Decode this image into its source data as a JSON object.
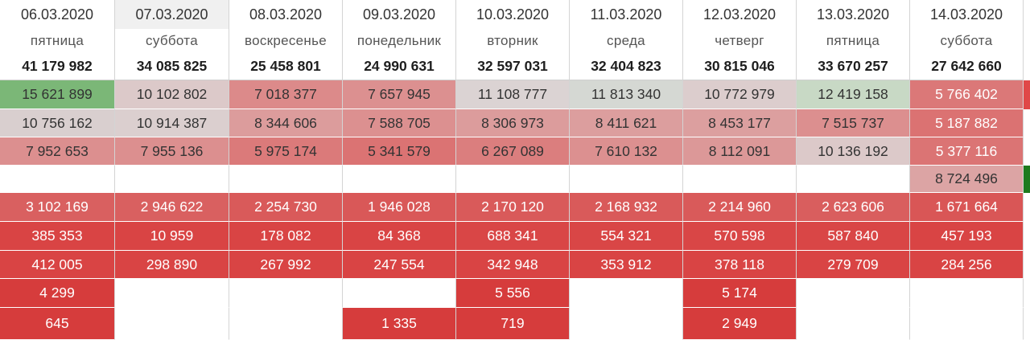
{
  "columns": [
    {
      "date": "06.03.2020",
      "day": "пятница",
      "total": "41 179 982",
      "cells": [
        {
          "v": "15 621 899",
          "bg": "#7bb777",
          "t": "light"
        },
        {
          "v": "10 756 162",
          "bg": "#d9cfcf",
          "t": "light"
        },
        {
          "v": "7 952 653",
          "bg": "#dc8f8f",
          "t": "light"
        },
        {
          "v": "",
          "bg": "#ffffff",
          "t": "light"
        },
        {
          "v": "3 102 169",
          "bg": "#d96060",
          "t": "med"
        },
        {
          "v": "385 353",
          "bg": "#d94444",
          "t": "dark"
        },
        {
          "v": "412 005",
          "bg": "#d94444",
          "t": "dark"
        },
        {
          "v": "4 299",
          "bg": "#d63c3c",
          "t": "dark"
        },
        {
          "v": "645",
          "bg": "#d63c3c",
          "t": "dark"
        }
      ]
    },
    {
      "date": "07.03.2020",
      "day": "суббота",
      "total": "34 085 825",
      "cells": [
        {
          "v": "10 102 802",
          "bg": "#dcc9c9",
          "t": "light"
        },
        {
          "v": "10 914 387",
          "bg": "#dbcfcf",
          "t": "light"
        },
        {
          "v": "7 955 136",
          "bg": "#dc8f8f",
          "t": "light"
        },
        {
          "v": "",
          "bg": "#ffffff",
          "t": "light"
        },
        {
          "v": "2 946 622",
          "bg": "#d96060",
          "t": "med"
        },
        {
          "v": "10 959",
          "bg": "#d94444",
          "t": "dark"
        },
        {
          "v": "298 890",
          "bg": "#d94444",
          "t": "dark"
        },
        {
          "v": "",
          "bg": "#ffffff",
          "t": "light"
        },
        {
          "v": "",
          "bg": "#ffffff",
          "t": "light"
        }
      ]
    },
    {
      "date": "08.03.2020",
      "day": "воскресенье",
      "total": "25 458 801",
      "cells": [
        {
          "v": "7 018 377",
          "bg": "#dc8a8a",
          "t": "light"
        },
        {
          "v": "8 344 606",
          "bg": "#dc9c9c",
          "t": "light"
        },
        {
          "v": "5 975 174",
          "bg": "#db7a7a",
          "t": "light"
        },
        {
          "v": "",
          "bg": "#ffffff",
          "t": "light"
        },
        {
          "v": "2 254 730",
          "bg": "#d95a5a",
          "t": "med"
        },
        {
          "v": "178 082",
          "bg": "#d94444",
          "t": "dark"
        },
        {
          "v": "267 992",
          "bg": "#d94444",
          "t": "dark"
        },
        {
          "v": "",
          "bg": "#ffffff",
          "t": "light"
        },
        {
          "v": "",
          "bg": "#ffffff",
          "t": "light"
        }
      ]
    },
    {
      "date": "09.03.2020",
      "day": "понедельник",
      "total": "24 990 631",
      "cells": [
        {
          "v": "7 657 945",
          "bg": "#dc9090",
          "t": "light"
        },
        {
          "v": "7 588 705",
          "bg": "#dc9090",
          "t": "light"
        },
        {
          "v": "5 341 579",
          "bg": "#db7373",
          "t": "light"
        },
        {
          "v": "",
          "bg": "#ffffff",
          "t": "light"
        },
        {
          "v": "1 946 028",
          "bg": "#d95858",
          "t": "med"
        },
        {
          "v": "84 368",
          "bg": "#d94444",
          "t": "dark"
        },
        {
          "v": "247 554",
          "bg": "#d94444",
          "t": "dark"
        },
        {
          "v": "",
          "bg": "#ffffff",
          "t": "light"
        },
        {
          "v": "1 335",
          "bg": "#d63c3c",
          "t": "dark"
        }
      ]
    },
    {
      "date": "10.03.2020",
      "day": "вторник",
      "total": "32 597 031",
      "cells": [
        {
          "v": "11 108 777",
          "bg": "#dbd3d3",
          "t": "light"
        },
        {
          "v": "8 306 973",
          "bg": "#dc9c9c",
          "t": "light"
        },
        {
          "v": "6 267 089",
          "bg": "#db7e7e",
          "t": "light"
        },
        {
          "v": "",
          "bg": "#ffffff",
          "t": "light"
        },
        {
          "v": "2 170 120",
          "bg": "#d95a5a",
          "t": "med"
        },
        {
          "v": "688 341",
          "bg": "#d94646",
          "t": "dark"
        },
        {
          "v": "342 948",
          "bg": "#d94444",
          "t": "dark"
        },
        {
          "v": "5 556",
          "bg": "#d63c3c",
          "t": "dark"
        },
        {
          "v": "719",
          "bg": "#d63c3c",
          "t": "dark"
        }
      ]
    },
    {
      "date": "11.03.2020",
      "day": "среда",
      "total": "32 404 823",
      "cells": [
        {
          "v": "11 813 340",
          "bg": "#d5d8d3",
          "t": "light"
        },
        {
          "v": "8 411 621",
          "bg": "#dc9e9e",
          "t": "light"
        },
        {
          "v": "7 610 132",
          "bg": "#dc9090",
          "t": "light"
        },
        {
          "v": "",
          "bg": "#ffffff",
          "t": "light"
        },
        {
          "v": "2 168 932",
          "bg": "#d95a5a",
          "t": "med"
        },
        {
          "v": "554 321",
          "bg": "#d94646",
          "t": "dark"
        },
        {
          "v": "353 912",
          "bg": "#d94444",
          "t": "dark"
        },
        {
          "v": "",
          "bg": "#ffffff",
          "t": "light"
        },
        {
          "v": "",
          "bg": "#ffffff",
          "t": "light"
        }
      ]
    },
    {
      "date": "12.03.2020",
      "day": "четверг",
      "total": "30 815 046",
      "cells": [
        {
          "v": "10 772 979",
          "bg": "#dccdcd",
          "t": "light"
        },
        {
          "v": "8 453 177",
          "bg": "#dc9f9f",
          "t": "light"
        },
        {
          "v": "8 112 091",
          "bg": "#dc9898",
          "t": "light"
        },
        {
          "v": "",
          "bg": "#ffffff",
          "t": "light"
        },
        {
          "v": "2 214 960",
          "bg": "#d95a5a",
          "t": "med"
        },
        {
          "v": "570 598",
          "bg": "#d94646",
          "t": "dark"
        },
        {
          "v": "378 118",
          "bg": "#d94444",
          "t": "dark"
        },
        {
          "v": "5 174",
          "bg": "#d63c3c",
          "t": "dark"
        },
        {
          "v": "2 949",
          "bg": "#d63c3c",
          "t": "dark"
        }
      ]
    },
    {
      "date": "13.03.2020",
      "day": "пятница",
      "total": "33 670 257",
      "cells": [
        {
          "v": "12 419 158",
          "bg": "#c8d9c5",
          "t": "light"
        },
        {
          "v": "7 515 737",
          "bg": "#dc8f8f",
          "t": "light"
        },
        {
          "v": "10 136 192",
          "bg": "#dcc9c9",
          "t": "light"
        },
        {
          "v": "",
          "bg": "#ffffff",
          "t": "light"
        },
        {
          "v": "2 623 606",
          "bg": "#d95e5e",
          "t": "med"
        },
        {
          "v": "587 840",
          "bg": "#d94646",
          "t": "dark"
        },
        {
          "v": "279 709",
          "bg": "#d94444",
          "t": "dark"
        },
        {
          "v": "",
          "bg": "#ffffff",
          "t": "light"
        },
        {
          "v": "",
          "bg": "#ffffff",
          "t": "light"
        }
      ]
    },
    {
      "date": "14.03.2020",
      "day": "суббота",
      "total": "27 642 660",
      "cells": [
        {
          "v": "5 766 402",
          "bg": "#db7878",
          "t": "med"
        },
        {
          "v": "5 187 882",
          "bg": "#db7272",
          "t": "med"
        },
        {
          "v": "5 377 116",
          "bg": "#db7474",
          "t": "med"
        },
        {
          "v": "8 724 496",
          "bg": "#dca4a4",
          "t": "light"
        },
        {
          "v": "1 671 664",
          "bg": "#d95656",
          "t": "med"
        },
        {
          "v": "457 193",
          "bg": "#d94444",
          "t": "dark"
        },
        {
          "v": "284 256",
          "bg": "#d94444",
          "t": "dark"
        },
        {
          "v": "",
          "bg": "#ffffff",
          "t": "light"
        },
        {
          "v": "",
          "bg": "#ffffff",
          "t": "light"
        }
      ]
    }
  ],
  "edge_flags": [
    "red",
    "",
    "",
    "green",
    "",
    "",
    "",
    "",
    ""
  ],
  "colors": {
    "highest": "#7bb777",
    "neutral": "#dbd3d3",
    "low": "#d94444",
    "grid_line": "#d4d4d4",
    "selected_header": "#f0f0f0"
  },
  "selected_column": 1
}
